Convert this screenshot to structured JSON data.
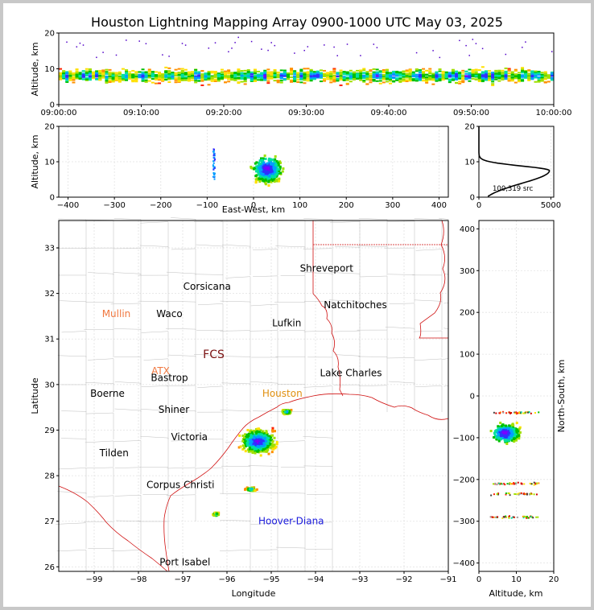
{
  "title": "Houston Lightning Mapping Array 0900-1000 UTC May 03, 2025",
  "time_panel": {
    "ylabel": "Altitude, km",
    "y_ticks": [
      "0",
      "10",
      "20"
    ],
    "x_ticks": [
      "09:00:00",
      "09:10:00",
      "09:20:00",
      "09:30:00",
      "09:40:00",
      "09:50:00",
      "10:00:00"
    ]
  },
  "ew_panel": {
    "xlabel": "East-West, km",
    "ylabel": "Altitude, km",
    "x_ticks": [
      "−400",
      "−300",
      "−200",
      "−100",
      "0",
      "100",
      "200",
      "300",
      "400"
    ],
    "y_ticks": [
      "0",
      "10",
      "20"
    ]
  },
  "hist_panel": {
    "count_label": "100,319 src",
    "x_ticks": [
      "0",
      "5000"
    ],
    "y_ticks": [
      "0",
      "10",
      "20"
    ]
  },
  "map_panel": {
    "xlabel": "Longitude",
    "ylabel": "Latitude",
    "x_ticks": [
      "−99",
      "−98",
      "−97",
      "−96",
      "−95",
      "−94",
      "−93",
      "−92",
      "−91"
    ],
    "y_ticks": [
      "26",
      "27",
      "28",
      "29",
      "30",
      "31",
      "32",
      "33"
    ],
    "cities": [
      {
        "name": "Shreveport",
        "lon": -93.75,
        "lat": 32.55,
        "color": "#000000"
      },
      {
        "name": "Corsicana",
        "lon": -96.45,
        "lat": 32.15,
        "color": "#000000"
      },
      {
        "name": "Natchitoches",
        "lon": -93.1,
        "lat": 31.75,
        "color": "#000000"
      },
      {
        "name": "Mullin",
        "lon": -98.5,
        "lat": 31.55,
        "color": "#f07840"
      },
      {
        "name": "Waco",
        "lon": -97.3,
        "lat": 31.55,
        "color": "#000000"
      },
      {
        "name": "Lufkin",
        "lon": -94.65,
        "lat": 31.35,
        "color": "#000000"
      },
      {
        "name": "FCS",
        "lon": -96.3,
        "lat": 30.65,
        "color": "#7a1010"
      },
      {
        "name": "ATX",
        "lon": -97.5,
        "lat": 30.3,
        "color": "#f07840"
      },
      {
        "name": "Bastrop",
        "lon": -97.3,
        "lat": 30.15,
        "color": "#000000"
      },
      {
        "name": "Lake Charles",
        "lon": -93.2,
        "lat": 30.25,
        "color": "#000000"
      },
      {
        "name": "Boerne",
        "lon": -98.7,
        "lat": 29.8,
        "color": "#000000"
      },
      {
        "name": "Houston",
        "lon": -94.75,
        "lat": 29.8,
        "color": "#e09010"
      },
      {
        "name": "Shiner",
        "lon": -97.2,
        "lat": 29.45,
        "color": "#000000"
      },
      {
        "name": "Victoria",
        "lon": -96.85,
        "lat": 28.85,
        "color": "#000000"
      },
      {
        "name": "Tilden",
        "lon": -98.55,
        "lat": 28.5,
        "color": "#000000"
      },
      {
        "name": "Corpus Christi",
        "lon": -97.05,
        "lat": 27.8,
        "color": "#000000"
      },
      {
        "name": "Hoover-Diana",
        "lon": -94.55,
        "lat": 27.0,
        "color": "#1a1adc"
      },
      {
        "name": "Port Isabel",
        "lon": -96.95,
        "lat": 26.1,
        "color": "#000000"
      }
    ]
  },
  "ns_panel": {
    "xlabel": "Altitude, km",
    "ylabel": "North-South, km",
    "x_ticks": [
      "0",
      "10",
      "20"
    ],
    "y_ticks": [
      "−400",
      "−300",
      "−200",
      "−100",
      "0",
      "100",
      "200",
      "300",
      "400"
    ]
  },
  "chart_data": {
    "type": "scatter",
    "title": "Houston Lightning Mapping Array 0900-1000 UTC May 03, 2025",
    "total_sources": 100319,
    "time_altitude": {
      "xlim": [
        "09:00:00",
        "10:00:00"
      ],
      "ylim": [
        0,
        20
      ],
      "typical_altitude_km": [
        4,
        12
      ]
    },
    "ew_altitude": {
      "xlim": [
        -420,
        420
      ],
      "ylim": [
        0,
        20
      ],
      "main_cluster": {
        "x_km": [
          -50,
          110
        ],
        "alt_km": [
          1,
          17
        ]
      },
      "minor_cluster": {
        "x_km": -85,
        "alt_km": [
          5,
          14
        ]
      }
    },
    "altitude_histogram": {
      "xlim": [
        0,
        5200
      ],
      "ylim": [
        0,
        20
      ],
      "peak_altitude_km": 7.5,
      "peak_count": 4900
    },
    "plan_view": {
      "xlim": [
        -99.8,
        -91.0
      ],
      "ylim": [
        25.9,
        33.6
      ],
      "clusters": [
        {
          "lon": -95.3,
          "lat": 28.75,
          "extent_deg": [
            1.3,
            0.9
          ]
        },
        {
          "lon": -94.65,
          "lat": 29.4,
          "extent_deg": [
            0.4,
            0.2
          ]
        },
        {
          "lon": -95.45,
          "lat": 27.7,
          "extent_deg": [
            0.4,
            0.15
          ]
        },
        {
          "lon": -96.25,
          "lat": 27.15,
          "extent_deg": [
            0.25,
            0.15
          ]
        }
      ]
    },
    "ns_altitude": {
      "xlim": [
        0,
        20
      ],
      "ylim": [
        -420,
        420
      ],
      "main_cluster": {
        "y_km": [
          -130,
          -40
        ],
        "alt_km": [
          1,
          17
        ]
      },
      "bands_y_km": [
        -40,
        -210,
        -235,
        -290
      ]
    }
  }
}
